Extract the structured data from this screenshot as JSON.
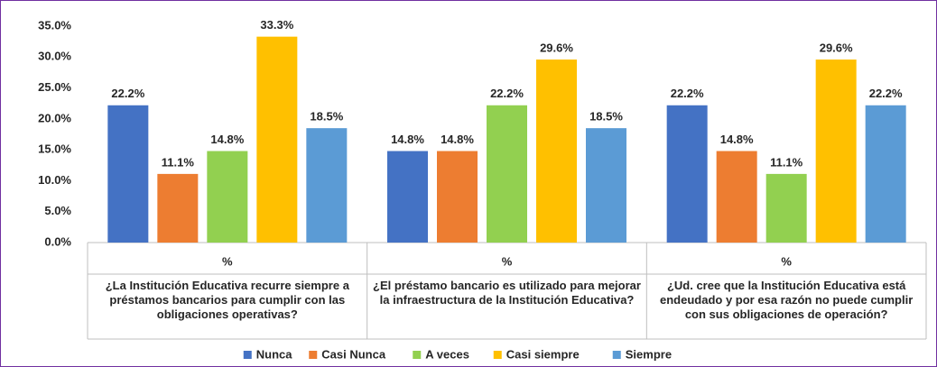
{
  "chart_data": {
    "type": "bar",
    "categories": [
      "%",
      "%",
      "%"
    ],
    "groups": [
      "¿La Institución Educativa recurre siempre a préstamos bancarios para cumplir con las obligaciones operativas?",
      "¿El préstamo bancario es utilizado para mejorar la infraestructura de la Institución Educativa?",
      "¿Ud. cree que la Institución Educativa está endeudado y por esa razón no puede cumplir con sus obligaciones de operación?"
    ],
    "series": [
      {
        "name": "Nunca",
        "color": "#4472c4",
        "values": [
          22.2,
          14.8,
          22.2
        ],
        "value_labels": [
          "22.2%",
          "14.8%",
          "22.2%"
        ]
      },
      {
        "name": "Casi Nunca",
        "color": "#ed7d31",
        "values": [
          11.1,
          14.8,
          14.8
        ],
        "value_labels": [
          "11.1%",
          "14.8%",
          "14.8%"
        ]
      },
      {
        "name": "A veces",
        "color": "#92d050",
        "values": [
          14.8,
          22.2,
          11.1
        ],
        "value_labels": [
          "14.8%",
          "22.2%",
          "11.1%"
        ]
      },
      {
        "name": "Casi siempre",
        "color": "#ffc000",
        "values": [
          33.3,
          29.6,
          29.6
        ],
        "value_labels": [
          "33.3%",
          "29.6%",
          "29.6%"
        ]
      },
      {
        "name": "Siempre",
        "color": "#5b9bd5",
        "values": [
          18.5,
          18.5,
          22.2
        ],
        "value_labels": [
          "18.5%",
          "18.5%",
          "22.2%"
        ]
      }
    ],
    "ylim": [
      0,
      35
    ],
    "yticks": [
      {
        "value": 0,
        "label": "0.0%"
      },
      {
        "value": 5,
        "label": "5.0%"
      },
      {
        "value": 10,
        "label": "10.0%"
      },
      {
        "value": 15,
        "label": "15.0%"
      },
      {
        "value": 20,
        "label": "20.0%"
      },
      {
        "value": 25,
        "label": "25.0%"
      },
      {
        "value": 30,
        "label": "30.0%"
      },
      {
        "value": 35,
        "label": "35.0%"
      }
    ],
    "grid": false,
    "legend": "bottom"
  }
}
